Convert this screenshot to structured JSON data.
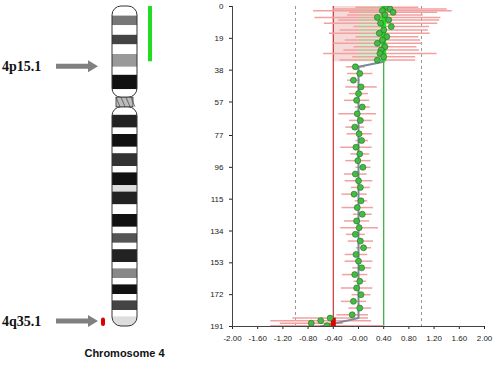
{
  "chart_data": {
    "type": "scatter",
    "chromosome_label": "Chromosome 4",
    "annotations": [
      {
        "text": "4p15.1",
        "position": 36
      },
      {
        "text": "4q35.1",
        "position": 188
      }
    ],
    "xlim": [
      -2,
      2
    ],
    "xticks": [
      {
        "value": -2,
        "label": "-2.00"
      },
      {
        "value": -1.6,
        "label": "-1.60"
      },
      {
        "value": -1.2,
        "label": "-1.20"
      },
      {
        "value": -0.8,
        "label": "-0.80"
      },
      {
        "value": -0.4,
        "label": "-0.40"
      },
      {
        "value": 0,
        "label": "-0.00"
      },
      {
        "value": 0.4,
        "label": "0.40"
      },
      {
        "value": 0.8,
        "label": "0.80"
      },
      {
        "value": 1.2,
        "label": "1.20"
      },
      {
        "value": 1.6,
        "label": "1.60"
      },
      {
        "value": 2,
        "label": "2.00"
      }
    ],
    "ylim": [
      0,
      191
    ],
    "yticks": [
      0,
      19,
      38,
      57,
      77,
      96,
      115,
      134,
      153,
      172,
      191
    ],
    "reference_lines": [
      {
        "value": -1,
        "color": "#999999",
        "line_style": "dashed"
      },
      {
        "value": 1,
        "color": "#999999",
        "line_style": "dashed"
      }
    ],
    "thresholds": {
      "loss": -0.4,
      "gain": 0.4,
      "loss_color": "#cc3333",
      "gain_color": "#33aa33"
    },
    "gains": [
      {
        "start": 0,
        "end": 33,
        "color": "#22dd22"
      }
    ],
    "losses": [
      {
        "start": 186,
        "end": 191,
        "color": "#dd0000"
      }
    ],
    "points": {
      "color": "#44bb44",
      "marker": "circle",
      "y": [
        0.5,
        1.5,
        2.5,
        3.5,
        5,
        6.5,
        8,
        10,
        12,
        14,
        16,
        18,
        20,
        22,
        24,
        26,
        28,
        30,
        32,
        36,
        40,
        44,
        48,
        52,
        56,
        60,
        64,
        68,
        72,
        76,
        80,
        84,
        88,
        92,
        96,
        100,
        104,
        108,
        112,
        116,
        120,
        124,
        128,
        132,
        136,
        140,
        144,
        148,
        152,
        156,
        160,
        164,
        168,
        172,
        176,
        180,
        184,
        186,
        187.5,
        189,
        190.5
      ],
      "x": [
        0.45,
        0.5,
        0.38,
        0.55,
        0.42,
        0.3,
        0.48,
        0.35,
        0.52,
        0.4,
        0.33,
        0.45,
        0.38,
        0.3,
        0.42,
        0.36,
        0.34,
        0.4,
        0.3,
        -0.05,
        0.02,
        -0.08,
        0.04,
        0.0,
        -0.03,
        0.06,
        -0.02,
        0.03,
        -0.06,
        0.01,
        0.05,
        -0.04,
        0.02,
        -0.01,
        0.07,
        -0.05,
        0.0,
        0.03,
        -0.07,
        0.04,
        -0.02,
        0.06,
        -0.03,
        0.01,
        -0.05,
        0.03,
        0.08,
        -0.04,
        0.0,
        0.05,
        -0.06,
        0.02,
        -0.03,
        0.04,
        -0.08,
        0.02,
        -0.1,
        -0.45,
        -0.6,
        -0.75,
        -0.5
      ],
      "errors": [
        0.5,
        0.9,
        1.1,
        0.7,
        0.6,
        1.0,
        0.8,
        0.9,
        0.6,
        0.7,
        0.8,
        0.5,
        0.6,
        0.7,
        0.5,
        0.6,
        0.9,
        0.5,
        0.6,
        0.15,
        0.2,
        0.1,
        0.25,
        0.15,
        0.2,
        0.12,
        0.3,
        0.18,
        0.15,
        0.2,
        0.1,
        0.25,
        0.15,
        0.2,
        0.12,
        0.18,
        0.22,
        0.15,
        0.2,
        0.1,
        0.25,
        0.15,
        0.2,
        0.3,
        0.15,
        0.2,
        0.12,
        0.18,
        0.22,
        0.15,
        0.2,
        0.1,
        0.25,
        0.15,
        0.2,
        0.18,
        0.25,
        0.6,
        0.8,
        0.5,
        0.9
      ],
      "error_color": "#f2a0a0"
    },
    "average": {
      "color": "#7a8a9a",
      "y": [
        0,
        33,
        36,
        186,
        191
      ],
      "x": [
        0.4,
        0.4,
        0,
        0,
        -0.6
      ]
    }
  }
}
